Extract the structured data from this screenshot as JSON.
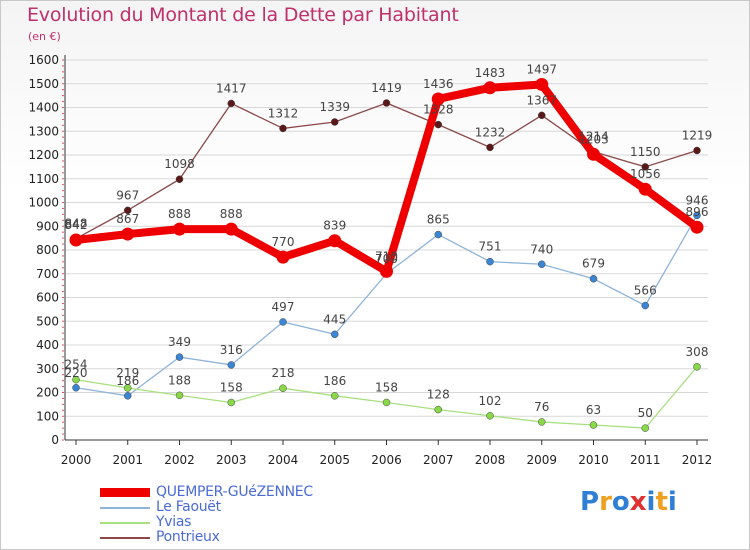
{
  "header": {
    "title": "Evolution du Montant de la Dette par Habitant",
    "subtitle": "(en €)"
  },
  "logo": {
    "text": "Proxiti",
    "colors": [
      "#2f7fd6",
      "#f0a020",
      "#2f7fd6",
      "#e03030",
      "#2f7fd6",
      "#f0a020",
      "#2f7fd6"
    ]
  },
  "chart_data": {
    "type": "line",
    "title": "Evolution du Montant de la Dette par Habitant",
    "subtitle": "(en €)",
    "xlabel": "",
    "ylabel": "",
    "x": [
      "2000",
      "2001",
      "2002",
      "2003",
      "2004",
      "2005",
      "2006",
      "2007",
      "2008",
      "2009",
      "2010",
      "2011",
      "2012"
    ],
    "ylim": [
      0,
      1600
    ],
    "yticks": [
      0,
      100,
      200,
      300,
      400,
      500,
      600,
      700,
      800,
      900,
      1000,
      1100,
      1200,
      1300,
      1400,
      1500,
      1600
    ],
    "grid": "horizontal",
    "legend_position": "bottom-left",
    "series": [
      {
        "name": "QUEMPER-GUéZENNEC",
        "color": "#ee0000",
        "line_color": "#ee0000",
        "values": [
          842,
          867,
          888,
          888,
          770,
          839,
          710,
          1436,
          1483,
          1497,
          1203,
          1056,
          896
        ],
        "labels": [
          "842",
          "867",
          "888",
          "888",
          "770",
          "839",
          "710",
          "1436",
          "1483",
          "1497",
          "1203",
          "1056",
          "896"
        ],
        "emphasis": true
      },
      {
        "name": "Le Faouët",
        "color": "#3b86d4",
        "line_color": "#8fb4d8",
        "values": [
          220,
          186,
          349,
          316,
          497,
          445,
          700,
          865,
          751,
          740,
          679,
          566,
          946
        ],
        "labels": [
          "220",
          "186",
          "349",
          "316",
          "497",
          "445",
          "700",
          "865",
          "751",
          "740",
          "679",
          "566",
          "946"
        ]
      },
      {
        "name": "Yvias",
        "color": "#88d848",
        "line_color": "#a8e080",
        "values": [
          254,
          219,
          188,
          158,
          218,
          186,
          158,
          128,
          102,
          76,
          63,
          50,
          308
        ],
        "labels": [
          "254",
          "219",
          "188",
          "158",
          "218",
          "186",
          "158",
          "128",
          "102",
          "76",
          "63",
          "50",
          "308"
        ]
      },
      {
        "name": "Pontrieux",
        "color": "#5a1818",
        "line_color": "#8a4848",
        "values": [
          848,
          967,
          1098,
          1417,
          1312,
          1339,
          1419,
          1328,
          1232,
          1367,
          1214,
          1150,
          1219
        ],
        "labels": [
          "848",
          "967",
          "1098",
          "1417",
          "1312",
          "1339",
          "1419",
          "1328",
          "1232",
          "1367",
          "1214",
          "1150",
          "1219"
        ]
      }
    ]
  }
}
